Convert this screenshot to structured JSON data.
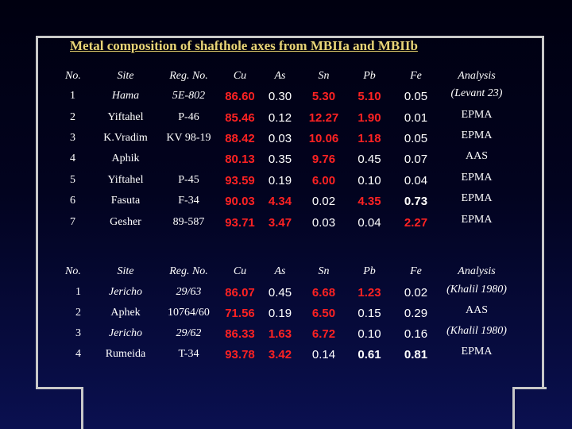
{
  "title": "Metal composition of shafthole axes from MBIIa and MBIIb",
  "table1": {
    "headers": {
      "no": "No.",
      "site": "Site",
      "reg": "Reg. No.",
      "cu": "Cu",
      "as": "As",
      "sn": "Sn",
      "pb": "Pb",
      "fe": "Fe",
      "analysis": "Analysis"
    },
    "rows": [
      {
        "no": "1",
        "site": "Hama",
        "reg": "5E-802",
        "cu": "86.60",
        "as": "0.30",
        "sn": "5.30",
        "pb": "5.10",
        "fe": "0.05",
        "analysis": "(Levant 23)"
      },
      {
        "no": "2",
        "site": "Yiftahel",
        "reg": "P-46",
        "cu": "85.46",
        "as": "0.12",
        "sn": "12.27",
        "pb": "1.90",
        "fe": "0.01",
        "analysis": "EPMA"
      },
      {
        "no": "3",
        "site": "K.Vradim",
        "reg": "KV 98-19",
        "cu": "88.42",
        "as": "0.03",
        "sn": "10.06",
        "pb": "1.18",
        "fe": "0.05",
        "analysis": "EPMA"
      },
      {
        "no": "4",
        "site": "Aphik",
        "reg": "",
        "cu": "80.13",
        "as": "0.35",
        "sn": "9.76",
        "pb": "0.45",
        "fe": "0.07",
        "analysis": "AAS"
      },
      {
        "no": "5",
        "site": "Yiftahel",
        "reg": "P-45",
        "cu": "93.59",
        "as": "0.19",
        "sn": "6.00",
        "pb": "0.10",
        "fe": "0.04",
        "analysis": "EPMA"
      },
      {
        "no": "6",
        "site": "Fasuta",
        "reg": "F-34",
        "cu": "90.03",
        "as": "4.34",
        "sn": "0.02",
        "pb": "4.35",
        "fe": "0.73",
        "analysis": "EPMA"
      },
      {
        "no": "7",
        "site": "Gesher",
        "reg": "89-587",
        "cu": "93.71",
        "as": "3.47",
        "sn": "0.03",
        "pb": "0.04",
        "fe": "2.27",
        "analysis": "EPMA"
      }
    ]
  },
  "table2": {
    "headers": {
      "no": "No.",
      "site": "Site",
      "reg": "Reg. No.",
      "cu": "Cu",
      "as": "As",
      "sn": "Sn",
      "pb": "Pb",
      "fe": "Fe",
      "analysis": "Analysis"
    },
    "rows": [
      {
        "no": "1",
        "site": "Jericho",
        "reg": "29/63",
        "cu": "86.07",
        "as": "0.45",
        "sn": "6.68",
        "pb": "1.23",
        "fe": "0.02",
        "analysis": "(Khalil 1980)"
      },
      {
        "no": "2",
        "site": "Aphek",
        "reg": "10764/60",
        "cu": "71.56",
        "as": "0.19",
        "sn": "6.50",
        "pb": "0.15",
        "fe": "0.29",
        "analysis": "AAS"
      },
      {
        "no": "3",
        "site": "Jericho",
        "reg": "29/62",
        "cu": "86.33",
        "as": "1.63",
        "sn": "6.72",
        "pb": "0.10",
        "fe": "0.16",
        "analysis": "(Khalil 1980)"
      },
      {
        "no": "4",
        "site": "Rumeida",
        "reg": "T-34",
        "cu": "93.78",
        "as": "3.42",
        "sn": "0.14",
        "pb": "0.61",
        "fe": "0.81",
        "analysis": "EPMA"
      }
    ]
  },
  "colors": {
    "highlight": "#ff2222",
    "title": "#e8d478",
    "text": "#ffffff",
    "frame": "#c8c8c8"
  }
}
